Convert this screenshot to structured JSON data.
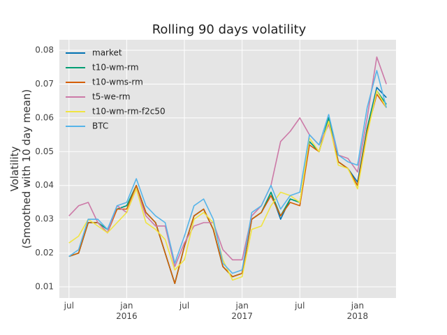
{
  "chart_data": {
    "type": "line",
    "title": "Rolling 90 days volatility",
    "ylabel": "Volatility\n(Smoothed with 10 day mean)",
    "x": [
      "2015-07",
      "2015-08",
      "2015-09",
      "2015-10",
      "2015-11",
      "2015-12",
      "2016-01",
      "2016-02",
      "2016-03",
      "2016-04",
      "2016-05",
      "2016-06",
      "2016-07",
      "2016-08",
      "2016-09",
      "2016-10",
      "2016-11",
      "2016-12",
      "2017-01",
      "2017-02",
      "2017-03",
      "2017-04",
      "2017-05",
      "2017-06",
      "2017-07",
      "2017-08",
      "2017-09",
      "2017-10",
      "2017-11",
      "2017-12",
      "2018-01",
      "2018-02",
      "2018-03",
      "2018-04"
    ],
    "series": [
      {
        "name": "market",
        "color": "#0072B2",
        "values": [
          0.019,
          0.02,
          0.029,
          0.029,
          0.027,
          0.033,
          0.034,
          0.04,
          0.032,
          0.029,
          0.02,
          0.011,
          0.022,
          0.031,
          0.033,
          0.027,
          0.016,
          0.013,
          0.014,
          0.03,
          0.032,
          0.038,
          0.03,
          0.036,
          0.035,
          0.053,
          0.05,
          0.06,
          0.047,
          0.045,
          0.041,
          0.057,
          0.069,
          0.066
        ]
      },
      {
        "name": "t10-wm-rm",
        "color": "#009E73",
        "values": [
          0.019,
          0.02,
          0.029,
          0.029,
          0.027,
          0.033,
          0.034,
          0.04,
          0.032,
          0.029,
          0.02,
          0.011,
          0.022,
          0.031,
          0.033,
          0.027,
          0.016,
          0.013,
          0.014,
          0.03,
          0.032,
          0.038,
          0.031,
          0.036,
          0.035,
          0.053,
          0.05,
          0.06,
          0.047,
          0.045,
          0.04,
          0.057,
          0.068,
          0.064
        ]
      },
      {
        "name": "t10-wms-rm",
        "color": "#D55E00",
        "values": [
          0.019,
          0.02,
          0.029,
          0.029,
          0.026,
          0.033,
          0.033,
          0.04,
          0.032,
          0.029,
          0.02,
          0.011,
          0.022,
          0.031,
          0.033,
          0.027,
          0.016,
          0.013,
          0.014,
          0.03,
          0.032,
          0.037,
          0.031,
          0.035,
          0.034,
          0.052,
          0.05,
          0.059,
          0.047,
          0.045,
          0.04,
          0.056,
          0.067,
          0.063
        ]
      },
      {
        "name": "t5-we-rm",
        "color": "#CC79A7",
        "values": [
          0.031,
          0.034,
          0.035,
          0.029,
          0.026,
          0.034,
          0.032,
          0.039,
          0.031,
          0.028,
          0.028,
          0.016,
          0.023,
          0.028,
          0.029,
          0.029,
          0.021,
          0.018,
          0.018,
          0.031,
          0.034,
          0.04,
          0.053,
          0.056,
          0.06,
          0.055,
          0.052,
          0.058,
          0.049,
          0.048,
          0.044,
          0.06,
          0.078,
          0.07
        ]
      },
      {
        "name": "t10-wm-rm-f2c50",
        "color": "#F0E442",
        "values": [
          0.023,
          0.025,
          0.03,
          0.028,
          0.026,
          0.029,
          0.032,
          0.039,
          0.029,
          0.027,
          0.024,
          0.015,
          0.018,
          0.03,
          0.032,
          0.029,
          0.018,
          0.012,
          0.013,
          0.027,
          0.028,
          0.034,
          0.038,
          0.037,
          0.035,
          0.054,
          0.05,
          0.059,
          0.046,
          0.045,
          0.039,
          0.055,
          0.068,
          0.063
        ]
      },
      {
        "name": "BTC",
        "color": "#56B4E9",
        "values": [
          0.019,
          0.021,
          0.03,
          0.03,
          0.027,
          0.034,
          0.035,
          0.042,
          0.034,
          0.031,
          0.029,
          0.017,
          0.025,
          0.034,
          0.036,
          0.03,
          0.017,
          0.014,
          0.015,
          0.032,
          0.034,
          0.04,
          0.033,
          0.037,
          0.038,
          0.055,
          0.052,
          0.061,
          0.049,
          0.047,
          0.046,
          0.063,
          0.074,
          0.063
        ]
      }
    ],
    "xlim": [
      "2015-06",
      "2018-05"
    ],
    "xticks": [
      {
        "value": "2015-07",
        "label": "jul"
      },
      {
        "value": "2016-01",
        "label": "jan\n2016"
      },
      {
        "value": "2016-07",
        "label": "jul"
      },
      {
        "value": "2017-01",
        "label": "jan\n2017"
      },
      {
        "value": "2017-07",
        "label": "jul"
      },
      {
        "value": "2018-01",
        "label": "jan\n2018"
      }
    ],
    "ylim": [
      0.0067,
      0.0831
    ],
    "yticks": [
      0.01,
      0.02,
      0.03,
      0.04,
      0.05,
      0.06,
      0.07,
      0.08
    ],
    "grid": true,
    "legend": "upper left"
  }
}
